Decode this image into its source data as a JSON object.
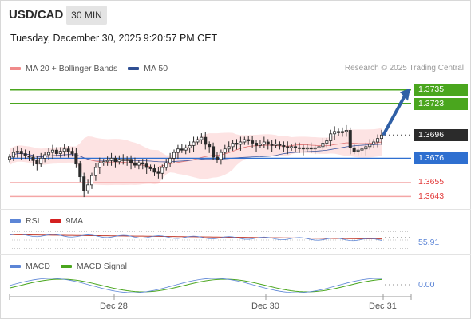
{
  "header": {
    "symbol": "USD/CAD",
    "timeframe": "30 MIN",
    "datetime": "Tuesday, December 30, 2025 9:20:57 PM CET"
  },
  "legend": {
    "ma20": "MA 20 + Bollinger Bands",
    "ma50": "MA 50",
    "credit": "Research © 2025 Trading Central",
    "rsi": "RSI",
    "rsi_ma": "9MA",
    "macd": "MACD",
    "macd_signal": "MACD Signal"
  },
  "colors": {
    "green": "#4aa61e",
    "blue": "#2e6fd0",
    "red": "#e23a3a",
    "pink": "#f4a6a6",
    "candle": "#2b2b2b",
    "band_fill": "#fde3e3",
    "ma20": "#e07070",
    "ma50": "#3b56a0",
    "rsi": "#5c85d6",
    "rsi_ma": "#c0392b",
    "macd": "#5c85d6",
    "signal": "#4aa61e"
  },
  "chart_data": {
    "type": "candlestick",
    "x_ticks": [
      "Dec 28",
      "Dec 30",
      "Dec 31"
    ],
    "price_range": [
      1.3635,
      1.3745
    ],
    "levels": [
      {
        "value": 1.3735,
        "label": "1.3735",
        "kind": "resistance"
      },
      {
        "value": 1.3723,
        "label": "1.3723",
        "kind": "resistance"
      },
      {
        "value": 1.3696,
        "label": "1.3696",
        "kind": "last"
      },
      {
        "value": 1.3676,
        "label": "1.3676",
        "kind": "pivot"
      },
      {
        "value": 1.3655,
        "label": "1.3655",
        "kind": "support"
      },
      {
        "value": 1.3643,
        "label": "1.3643",
        "kind": "support"
      }
    ],
    "close": [
      1.3677,
      1.3681,
      1.3682,
      1.368,
      1.3678,
      1.3677,
      1.3674,
      1.3671,
      1.3676,
      1.3679,
      1.3681,
      1.3683,
      1.368,
      1.3682,
      1.3684,
      1.3682,
      1.368,
      1.3671,
      1.366,
      1.3648,
      1.3653,
      1.3661,
      1.3668,
      1.3672,
      1.3673,
      1.3674,
      1.3676,
      1.3673,
      1.3675,
      1.3674,
      1.3675,
      1.3672,
      1.367,
      1.3672,
      1.3671,
      1.3668,
      1.3667,
      1.3664,
      1.3663,
      1.3668,
      1.3672,
      1.3676,
      1.3681,
      1.3684,
      1.3683,
      1.3685,
      1.3687,
      1.369,
      1.3692,
      1.3694,
      1.3688,
      1.3686,
      1.3677,
      1.3675,
      1.3681,
      1.3684,
      1.3686,
      1.3689,
      1.3688,
      1.369,
      1.3692,
      1.3691,
      1.3689,
      1.3687,
      1.3688,
      1.369,
      1.3688,
      1.3687,
      1.3688,
      1.3687,
      1.3686,
      1.3685,
      1.3686,
      1.3685,
      1.3685,
      1.3684,
      1.3685,
      1.3684,
      1.3685,
      1.3686,
      1.3689,
      1.3691,
      1.3697,
      1.3699,
      1.3698,
      1.3699,
      1.37,
      1.3685,
      1.3682,
      1.3683,
      1.3684,
      1.3686,
      1.3688,
      1.369,
      1.3693,
      1.3696
    ],
    "rsi": {
      "label": "55.91",
      "value": 55.91,
      "upper": 70,
      "lower": 30
    },
    "macd": {
      "label": "0.00",
      "value": 0.0
    }
  }
}
